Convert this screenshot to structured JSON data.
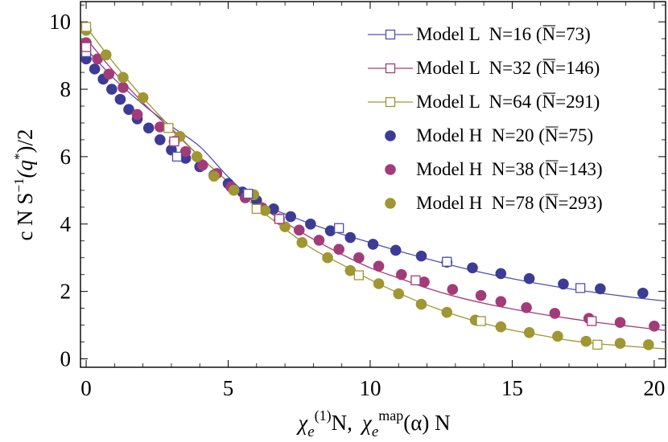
{
  "chart_data": {
    "type": "scatter",
    "xlim": [
      -0.2,
      20.4
    ],
    "ylim": [
      -0.25,
      10.6
    ],
    "x_ticks": [
      "0",
      "5",
      "10",
      "15",
      "20"
    ],
    "y_ticks": [
      "0",
      "2",
      "4",
      "6",
      "8",
      "10"
    ],
    "x_tick_values": [
      0,
      5,
      10,
      15,
      20
    ],
    "y_tick_values": [
      0,
      2,
      4,
      6,
      8,
      10
    ],
    "xlabel": {
      "a": "χ",
      "a_sub": "e",
      "a_sup": "(1)",
      "a_end": "N,",
      "b": "χ",
      "b_sub": "e",
      "b_sup": "map",
      "b_end": "(α) N"
    },
    "ylabel": {
      "pre": "c N S",
      "exp": "−1",
      "mid": "(q",
      "star": "*",
      "end": ")/2"
    },
    "series": [
      {
        "name": "Model L  N=16",
        "nbar_label": "(N=73)",
        "color": "#5050b4",
        "marker": "open-square",
        "curve": [
          [
            0,
            9.2
          ],
          [
            1,
            8.3
          ],
          [
            2,
            7.55
          ],
          [
            3,
            6.9
          ],
          [
            4,
            6.3
          ],
          [
            5,
            5.4
          ],
          [
            6,
            4.65
          ],
          [
            7,
            4.3
          ],
          [
            8,
            3.98
          ],
          [
            9,
            3.7
          ],
          [
            10,
            3.45
          ],
          [
            11,
            3.2
          ],
          [
            12,
            2.97
          ],
          [
            13,
            2.75
          ],
          [
            14,
            2.55
          ],
          [
            15,
            2.38
          ],
          [
            16,
            2.22
          ],
          [
            17,
            2.08
          ],
          [
            18,
            1.96
          ],
          [
            19,
            1.85
          ],
          [
            20,
            1.75
          ],
          [
            20.4,
            1.72
          ]
        ],
        "points": [
          [
            0,
            9.1
          ],
          [
            3.2,
            6.0
          ],
          [
            5.7,
            4.9
          ],
          [
            8.9,
            3.88
          ],
          [
            12.7,
            2.88
          ],
          [
            17.4,
            2.1
          ]
        ]
      },
      {
        "name": "Model L  N=32",
        "nbar_label": "(N=146)",
        "color": "#a23c78",
        "marker": "open-square",
        "curve": [
          [
            0,
            9.5
          ],
          [
            1,
            8.5
          ],
          [
            2,
            7.6
          ],
          [
            3,
            6.8
          ],
          [
            4,
            6.0
          ],
          [
            5,
            5.25
          ],
          [
            6,
            4.6
          ],
          [
            7,
            4.05
          ],
          [
            8,
            3.55
          ],
          [
            9,
            3.1
          ],
          [
            10,
            2.7
          ],
          [
            11,
            2.4
          ],
          [
            12,
            2.1
          ],
          [
            13,
            1.85
          ],
          [
            14,
            1.65
          ],
          [
            15,
            1.48
          ],
          [
            16,
            1.33
          ],
          [
            17,
            1.2
          ],
          [
            18,
            1.08
          ],
          [
            19,
            0.98
          ],
          [
            20,
            0.88
          ],
          [
            20.4,
            0.84
          ]
        ],
        "points": [
          [
            0,
            9.25
          ],
          [
            3.1,
            6.45
          ],
          [
            6.8,
            4.15
          ],
          [
            11.6,
            2.33
          ],
          [
            17.8,
            1.12
          ]
        ]
      },
      {
        "name": "Model L  N=64",
        "nbar_label": "(N=291)",
        "color": "#a09632",
        "marker": "open-square",
        "curve": [
          [
            0,
            9.85
          ],
          [
            1,
            8.75
          ],
          [
            2,
            7.75
          ],
          [
            3,
            6.85
          ],
          [
            4,
            6.0
          ],
          [
            5,
            5.25
          ],
          [
            6,
            4.5
          ],
          [
            7,
            3.85
          ],
          [
            8,
            3.25
          ],
          [
            9,
            2.8
          ],
          [
            10,
            2.35
          ],
          [
            11,
            1.95
          ],
          [
            12,
            1.6
          ],
          [
            13,
            1.3
          ],
          [
            14,
            1.05
          ],
          [
            15,
            0.85
          ],
          [
            16,
            0.7
          ],
          [
            17,
            0.55
          ],
          [
            18,
            0.45
          ],
          [
            19,
            0.38
          ],
          [
            20,
            0.32
          ],
          [
            20.4,
            0.3
          ]
        ],
        "points": [
          [
            0,
            9.85
          ],
          [
            2.9,
            6.85
          ],
          [
            6.0,
            4.45
          ],
          [
            9.6,
            2.48
          ],
          [
            13.9,
            1.12
          ],
          [
            18.0,
            0.42
          ]
        ]
      },
      {
        "name": "Model H  N=20",
        "nbar_label": "(N=75)",
        "color": "#3c3c96",
        "marker": "filled-circle",
        "curve": [],
        "points": [
          [
            0,
            8.9
          ],
          [
            0.3,
            8.6
          ],
          [
            0.6,
            8.3
          ],
          [
            0.9,
            8.0
          ],
          [
            1.2,
            7.7
          ],
          [
            1.5,
            7.4
          ],
          [
            1.8,
            7.12
          ],
          [
            2.2,
            6.85
          ],
          [
            2.6,
            6.5
          ],
          [
            3.0,
            6.2
          ],
          [
            3.5,
            5.95
          ],
          [
            4.0,
            5.7
          ],
          [
            4.5,
            5.45
          ],
          [
            5.0,
            5.2
          ],
          [
            5.5,
            4.95
          ],
          [
            6.0,
            4.7
          ],
          [
            6.6,
            4.45
          ],
          [
            7.2,
            4.22
          ],
          [
            7.9,
            4.0
          ],
          [
            8.6,
            3.8
          ],
          [
            9.3,
            3.6
          ],
          [
            10.1,
            3.4
          ],
          [
            10.9,
            3.22
          ],
          [
            11.8,
            3.05
          ],
          [
            12.7,
            2.87
          ],
          [
            13.6,
            2.7
          ],
          [
            14.6,
            2.53
          ],
          [
            15.6,
            2.38
          ],
          [
            16.8,
            2.22
          ],
          [
            18.1,
            2.08
          ],
          [
            19.6,
            1.95
          ]
        ]
      },
      {
        "name": "Model H  N=38",
        "nbar_label": "(N=143)",
        "color": "#a23c78",
        "marker": "filled-circle",
        "curve": [],
        "points": [
          [
            0,
            9.38
          ],
          [
            0.4,
            8.9
          ],
          [
            0.8,
            8.45
          ],
          [
            1.3,
            8.05
          ],
          [
            1.8,
            7.25
          ],
          [
            2.6,
            6.88
          ],
          [
            3.1,
            6.45
          ],
          [
            3.5,
            6.15
          ],
          [
            4.1,
            5.75
          ],
          [
            4.6,
            5.5
          ],
          [
            5.1,
            5.1
          ],
          [
            5.6,
            4.78
          ],
          [
            6.2,
            4.48
          ],
          [
            6.8,
            4.15
          ],
          [
            7.5,
            3.82
          ],
          [
            8.2,
            3.52
          ],
          [
            8.9,
            3.25
          ],
          [
            9.6,
            3.0
          ],
          [
            10.3,
            2.75
          ],
          [
            11.1,
            2.5
          ],
          [
            11.9,
            2.28
          ],
          [
            12.9,
            2.06
          ],
          [
            13.9,
            1.88
          ],
          [
            14.6,
            1.7
          ],
          [
            15.5,
            1.52
          ],
          [
            16.5,
            1.35
          ],
          [
            17.7,
            1.2
          ],
          [
            18.8,
            1.08
          ],
          [
            20.0,
            0.97
          ]
        ]
      },
      {
        "name": "Model H  N=78",
        "nbar_label": "(N=293)",
        "color": "#a09632",
        "marker": "filled-circle",
        "curve": [],
        "points": [
          [
            0,
            9.75
          ],
          [
            0.7,
            9.02
          ],
          [
            1.3,
            8.35
          ],
          [
            2.0,
            7.75
          ],
          [
            3.3,
            6.6
          ],
          [
            3.9,
            6.0
          ],
          [
            4.5,
            5.42
          ],
          [
            5.2,
            5.0
          ],
          [
            5.9,
            4.87
          ],
          [
            6.3,
            4.4
          ],
          [
            7.0,
            3.92
          ],
          [
            7.6,
            3.45
          ],
          [
            8.5,
            3.0
          ],
          [
            9.3,
            2.62
          ],
          [
            10.3,
            2.23
          ],
          [
            11.0,
            1.93
          ],
          [
            11.8,
            1.62
          ],
          [
            12.7,
            1.38
          ],
          [
            13.7,
            1.15
          ],
          [
            14.6,
            0.95
          ],
          [
            15.6,
            0.78
          ],
          [
            16.6,
            0.67
          ],
          [
            17.6,
            0.52
          ],
          [
            18.8,
            0.46
          ],
          [
            19.8,
            0.42
          ]
        ]
      }
    ]
  }
}
